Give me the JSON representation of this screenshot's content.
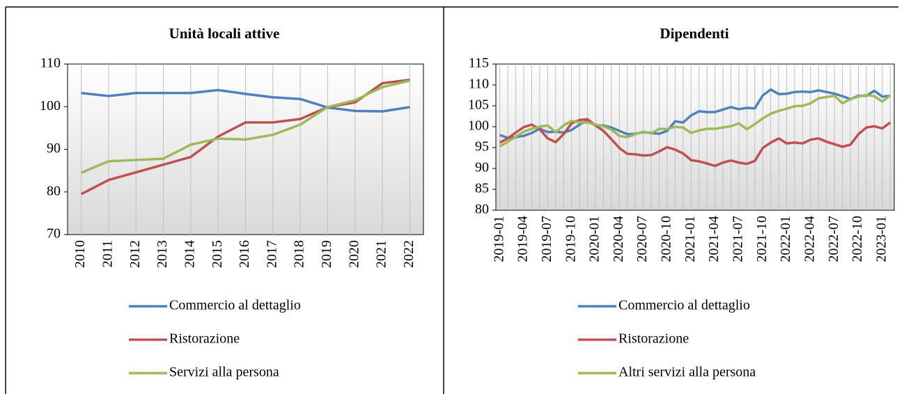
{
  "chart_data": [
    {
      "type": "line",
      "title": "Unità locali attive",
      "categories": [
        "2010",
        "2011",
        "2012",
        "2013",
        "2014",
        "2015",
        "2016",
        "2017",
        "2018",
        "2019",
        "2020",
        "2021",
        "2022"
      ],
      "series": [
        {
          "name": "Commercio al dettaglio",
          "color": "#4f81bd",
          "values": [
            103.2,
            102.5,
            103.2,
            103.2,
            103.2,
            103.9,
            103,
            102.2,
            101.8,
            99.8,
            99,
            98.9,
            99.9
          ]
        },
        {
          "name": "Ristorazione",
          "color": "#c0504d",
          "values": [
            79.5,
            82.8,
            84.6,
            86.4,
            88.2,
            93,
            96.3,
            96.3,
            97.1,
            99.9,
            101,
            105.5,
            106.3
          ]
        },
        {
          "name": "Servizi alla persona",
          "color": "#9bbb59",
          "values": [
            84.5,
            87.2,
            87.5,
            87.8,
            91.1,
            92.5,
            92.3,
            93.4,
            95.8,
            99.9,
            101.5,
            104.6,
            106.1
          ]
        }
      ],
      "ylim": [
        70,
        110
      ],
      "yticks": [
        70,
        80,
        90,
        100,
        110
      ],
      "xgrid": true,
      "legend": "bottom"
    },
    {
      "type": "line",
      "title": "Dipendenti",
      "categories": [
        "2019-01",
        null,
        null,
        "2019-04",
        null,
        null,
        "2019-07",
        null,
        null,
        "2019-10",
        null,
        null,
        "2020-01",
        null,
        null,
        "2020-04",
        null,
        null,
        "2020-07",
        null,
        null,
        "2020-10",
        null,
        null,
        "2021-01",
        null,
        null,
        "2021-04",
        null,
        null,
        "2021-07",
        null,
        null,
        "2021-10",
        null,
        null,
        "2022-01",
        null,
        null,
        "2022-04",
        null,
        null,
        "2022-07",
        null,
        null,
        "2022-10",
        null,
        null,
        "2023-01",
        null
      ],
      "series": [
        {
          "name": "Commercio al dettaglio",
          "color": "#4f81bd",
          "values": [
            98,
            97.3,
            97.5,
            97.8,
            98.5,
            99.5,
            98.7,
            98.8,
            98.6,
            99.2,
            100.5,
            101.5,
            100.3,
            100.3,
            99.8,
            99,
            98.2,
            98.3,
            98.7,
            98.5,
            98.3,
            99,
            101.3,
            101,
            102.7,
            103.7,
            103.5,
            103.5,
            104.1,
            104.7,
            104.2,
            104.5,
            104.4,
            107.5,
            108.9,
            107.8,
            107.9,
            108.3,
            108.4,
            108.3,
            108.7,
            108.3,
            107.9,
            107.3,
            106.6,
            107.4,
            107.4,
            108.6,
            107.2,
            107.4
          ]
        },
        {
          "name": "Ristorazione",
          "color": "#c0504d",
          "values": [
            96.2,
            97.2,
            98.6,
            99.9,
            100.5,
            99.4,
            97.2,
            96.3,
            98.2,
            100.8,
            101.6,
            101.8,
            100.3,
            99,
            97,
            94.9,
            93.5,
            93.4,
            93.1,
            93.2,
            94.1,
            95.1,
            94.5,
            93.6,
            92,
            91.7,
            91.2,
            90.6,
            91.4,
            91.9,
            91.4,
            91.1,
            91.8,
            94.9,
            96.2,
            97.2,
            96,
            96.2,
            96,
            96.9,
            97.2,
            96.4,
            95.8,
            95.2,
            95.7,
            98.2,
            99.8,
            100.1,
            99.6,
            101
          ]
        },
        {
          "name": "Altri servizi alla persona",
          "color": "#9bbb59",
          "values": [
            95.3,
            96.4,
            97.6,
            98.8,
            99.5,
            100,
            100.3,
            98.7,
            100.3,
            101.4,
            101,
            101,
            100.5,
            100.1,
            99.3,
            97.8,
            97.5,
            98.2,
            98.8,
            98.4,
            99.5,
            99.4,
            100,
            99.8,
            98.5,
            99.1,
            99.5,
            99.5,
            99.8,
            100.1,
            100.8,
            99.4,
            100.6,
            102,
            103.1,
            103.8,
            104.3,
            104.9,
            105,
            105.6,
            106.8,
            107.1,
            107.4,
            105.6,
            106.6,
            107.2,
            107.6,
            107.3,
            106,
            107.5
          ]
        }
      ],
      "ylim": [
        80,
        115
      ],
      "yticks": [
        80,
        85,
        90,
        95,
        100,
        105,
        110,
        115
      ],
      "xgrid": true,
      "legend": "bottom"
    }
  ]
}
